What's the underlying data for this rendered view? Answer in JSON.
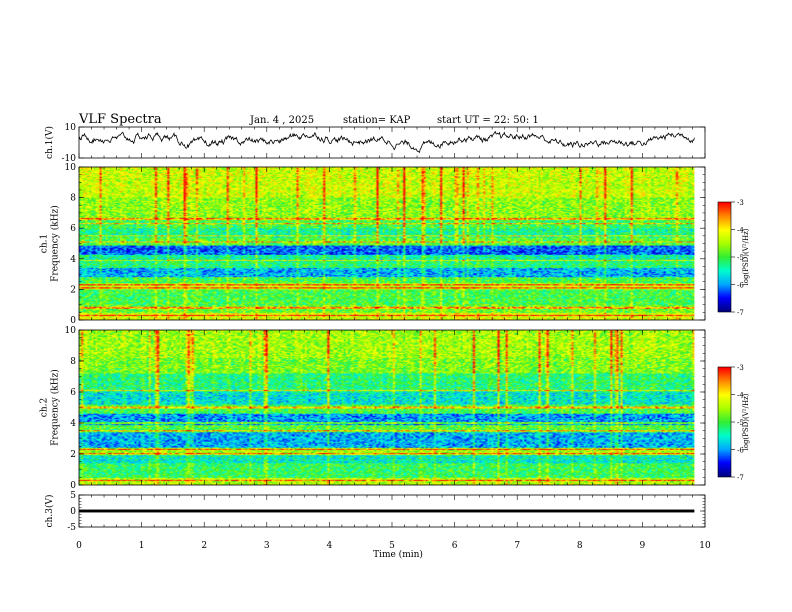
{
  "header": {
    "title": "VLF Spectra",
    "date": "Jan. 4 , 2025",
    "station": "station= KAP",
    "start_ut": "start UT =  22: 50: 1"
  },
  "colors": {
    "waveform": "#000000",
    "colormap": [
      "#000080",
      "#0000ff",
      "#00aaff",
      "#00ffcc",
      "#33ee33",
      "#aaff00",
      "#ffff00",
      "#ff8800",
      "#ff0000",
      "#ffffff"
    ]
  },
  "chart_data": [
    {
      "type": "line",
      "id": "ch1_waveform",
      "ylabel": "ch.1(V)",
      "ylim": [
        -10,
        10
      ],
      "yticks": [
        "10",
        "-10"
      ],
      "x_range_min": [
        0,
        9.83
      ],
      "series": [
        {
          "description": "noisy waveform",
          "baseline_V": 1.5,
          "amplitude_V": 4
        }
      ]
    },
    {
      "type": "heatmap",
      "id": "ch1_spectrogram",
      "ylabel": "ch.1\nFrequency (kHz)",
      "ylim": [
        0,
        10
      ],
      "yticks": [
        "0",
        "2",
        "4",
        "6",
        "8",
        "10"
      ],
      "x_range_min": [
        0,
        9.83
      ],
      "colorbar": {
        "label": "log(PSD)(V²/Hz)",
        "range": [
          -7,
          -3
        ],
        "ticks": [
          "-3",
          "-4",
          "-5",
          "-6",
          "-7"
        ]
      },
      "bands_kHz": [
        {
          "from": 0,
          "to": 0.5,
          "level": -4.2
        },
        {
          "from": 0.5,
          "to": 1.0,
          "level": -4.8
        },
        {
          "from": 1.0,
          "to": 2.0,
          "level": -5.0
        },
        {
          "from": 2.0,
          "to": 2.4,
          "level": -4.3
        },
        {
          "from": 2.4,
          "to": 2.8,
          "level": -5.0
        },
        {
          "from": 2.8,
          "to": 3.4,
          "level": -5.9
        },
        {
          "from": 3.4,
          "to": 3.9,
          "level": -5.2
        },
        {
          "from": 3.9,
          "to": 4.3,
          "level": -5.4
        },
        {
          "from": 4.3,
          "to": 4.9,
          "level": -6.2
        },
        {
          "from": 4.9,
          "to": 5.4,
          "level": -4.9
        },
        {
          "from": 5.4,
          "to": 6.0,
          "level": -5.3
        },
        {
          "from": 6.0,
          "to": 6.6,
          "level": -5.0
        },
        {
          "from": 6.6,
          "to": 8.0,
          "level": -4.6
        },
        {
          "from": 8.0,
          "to": 10.0,
          "level": -4.3
        }
      ],
      "lines_kHz": [
        0.3,
        0.8,
        2.1,
        2.3,
        3.9,
        5.1,
        5.5,
        6.3,
        6.6
      ]
    },
    {
      "type": "heatmap",
      "id": "ch2_spectrogram",
      "ylabel": "ch.2\nFrequency (kHz)",
      "ylim": [
        0,
        10
      ],
      "yticks": [
        "0",
        "2",
        "4",
        "6",
        "8",
        "10"
      ],
      "x_range_min": [
        0,
        9.83
      ],
      "colorbar": {
        "label": "log(PSD)(V²/Hz)",
        "range": [
          -7,
          -3
        ],
        "ticks": [
          "-3",
          "-4",
          "-5",
          "-6",
          "-7"
        ]
      },
      "bands_kHz": [
        {
          "from": 0,
          "to": 0.5,
          "level": -4.4
        },
        {
          "from": 0.5,
          "to": 1.4,
          "level": -5.1
        },
        {
          "from": 1.4,
          "to": 2.0,
          "level": -5.5
        },
        {
          "from": 2.0,
          "to": 2.4,
          "level": -4.5
        },
        {
          "from": 2.4,
          "to": 3.4,
          "level": -5.9
        },
        {
          "from": 3.4,
          "to": 3.9,
          "level": -4.9
        },
        {
          "from": 3.9,
          "to": 4.6,
          "level": -6.0
        },
        {
          "from": 4.6,
          "to": 5.2,
          "level": -5.0
        },
        {
          "from": 5.2,
          "to": 6.0,
          "level": -5.6
        },
        {
          "from": 6.0,
          "to": 7.2,
          "level": -5.2
        },
        {
          "from": 7.2,
          "to": 8.2,
          "level": -4.7
        },
        {
          "from": 8.2,
          "to": 10.0,
          "level": -4.5
        }
      ],
      "lines_kHz": [
        0.3,
        2.0,
        2.3,
        3.5,
        4.0,
        5.0,
        6.1
      ]
    },
    {
      "type": "line",
      "id": "ch3_signal",
      "ylabel": "ch.3(V)",
      "ylim": [
        -5,
        5
      ],
      "yticks": [
        "5",
        "0",
        "-5"
      ],
      "x_range_min": [
        0,
        9.83
      ],
      "series": [
        {
          "description": "thick flat band",
          "baseline_V": 0,
          "band_height_V": 0.9
        }
      ]
    }
  ],
  "xaxis": {
    "label": "Time (min)",
    "range": [
      0,
      10
    ],
    "ticks": [
      "0",
      "1",
      "2",
      "3",
      "4",
      "5",
      "6",
      "7",
      "8",
      "9",
      "10"
    ]
  }
}
